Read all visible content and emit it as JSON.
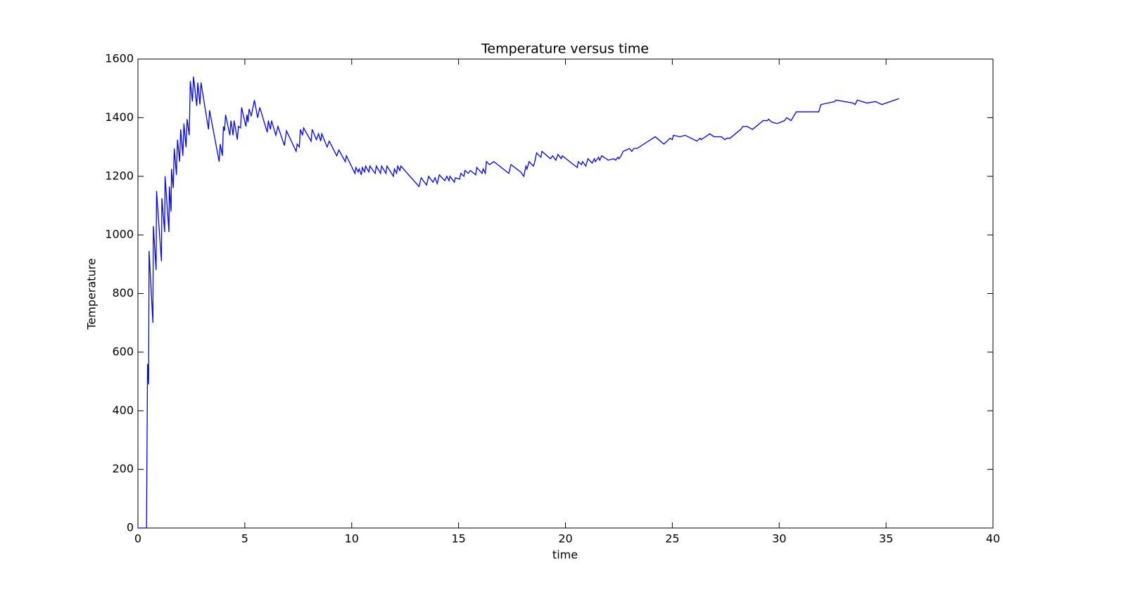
{
  "chart_data": {
    "type": "line",
    "title": "Temperature versus time",
    "x_label": "time",
    "y_label": "Temperature",
    "x": [
      0,
      0.4,
      0.45,
      0.5,
      0.52,
      0.7,
      0.72,
      0.85,
      0.87,
      1.1,
      1.12,
      1.25,
      1.27,
      1.45,
      1.47,
      1.55,
      1.57,
      1.65,
      1.7,
      1.8,
      1.85,
      1.95,
      2.0,
      2.1,
      2.15,
      2.25,
      2.3,
      2.4,
      2.45,
      2.55,
      2.6,
      2.75,
      2.8,
      2.9,
      2.95,
      3.3,
      3.35,
      3.8,
      3.85,
      3.95,
      4.0,
      4.05,
      4.1,
      4.3,
      4.35,
      4.45,
      4.5,
      4.65,
      4.7,
      4.8,
      4.85,
      5.05,
      5.1,
      5.15,
      5.2,
      5.3,
      5.45,
      5.6,
      5.7,
      6.05,
      6.1,
      6.2,
      6.25,
      6.45,
      6.55,
      6.85,
      6.95,
      7.4,
      7.45,
      7.55,
      7.6,
      7.7,
      7.75,
      8.1,
      8.15,
      8.35,
      8.45,
      8.55,
      8.6,
      8.85,
      8.95,
      9.3,
      9.4,
      9.7,
      9.75,
      10.15,
      10.2,
      10.3,
      10.35,
      10.45,
      10.5,
      10.6,
      10.65,
      10.8,
      10.85,
      11.1,
      11.15,
      11.35,
      11.4,
      11.6,
      11.65,
      11.95,
      12.0,
      12.1,
      12.15,
      12.25,
      12.3,
      13.15,
      13.25,
      13.5,
      13.6,
      13.8,
      13.9,
      14.0,
      14.1,
      14.35,
      14.45,
      14.55,
      14.6,
      14.8,
      14.85,
      15.05,
      15.1,
      15.25,
      15.3,
      15.45,
      15.55,
      15.8,
      15.85,
      16.1,
      16.15,
      16.25,
      16.3,
      16.45,
      16.65,
      17.35,
      17.45,
      17.9,
      18.05,
      18.15,
      18.2,
      18.3,
      18.5,
      18.55,
      18.65,
      18.85,
      18.9,
      19.3,
      19.4,
      19.55,
      19.65,
      19.8,
      19.85,
      20.55,
      20.6,
      20.75,
      20.8,
      20.95,
      21.05,
      21.25,
      21.35,
      21.4,
      21.55,
      21.6,
      21.7,
      22.0,
      22.25,
      22.35,
      22.45,
      22.5,
      22.6,
      22.7,
      23.0,
      23.1,
      23.2,
      23.35,
      24.2,
      24.6,
      24.9,
      25.0,
      25.05,
      25.35,
      25.6,
      26.15,
      26.3,
      26.35,
      26.75,
      26.95,
      27.3,
      27.45,
      27.55,
      27.7,
      28.2,
      28.3,
      28.5,
      28.75,
      29.25,
      29.45,
      29.5,
      29.65,
      29.9,
      30.25,
      30.35,
      30.55,
      30.8,
      31.85,
      31.95,
      32.6,
      32.65,
      33.45,
      33.55,
      33.65,
      34.1,
      34.5,
      34.8,
      35.6
    ],
    "series": [
      {
        "color": "#0000ff",
        "values": [
          0,
          0,
          560,
          490,
          945,
          700,
          1030,
          880,
          1150,
          910,
          1125,
          1010,
          1200,
          1010,
          1165,
          1080,
          1225,
          1160,
          1295,
          1205,
          1325,
          1250,
          1360,
          1270,
          1380,
          1300,
          1395,
          1340,
          1525,
          1455,
          1540,
          1440,
          1520,
          1445,
          1520,
          1360,
          1425,
          1250,
          1310,
          1270,
          1370,
          1355,
          1410,
          1340,
          1390,
          1340,
          1390,
          1325,
          1370,
          1365,
          1435,
          1370,
          1410,
          1385,
          1430,
          1405,
          1460,
          1400,
          1435,
          1350,
          1390,
          1360,
          1390,
          1340,
          1370,
          1305,
          1355,
          1285,
          1310,
          1300,
          1360,
          1340,
          1365,
          1320,
          1360,
          1325,
          1345,
          1320,
          1345,
          1300,
          1320,
          1270,
          1290,
          1250,
          1270,
          1210,
          1230,
          1215,
          1225,
          1205,
          1230,
          1215,
          1235,
          1215,
          1235,
          1210,
          1235,
          1210,
          1235,
          1210,
          1235,
          1200,
          1225,
          1210,
          1235,
          1220,
          1235,
          1165,
          1195,
          1170,
          1200,
          1180,
          1195,
          1175,
          1205,
          1185,
          1200,
          1185,
          1200,
          1180,
          1195,
          1190,
          1210,
          1200,
          1220,
          1210,
          1220,
          1205,
          1230,
          1210,
          1225,
          1210,
          1250,
          1240,
          1250,
          1210,
          1240,
          1215,
          1200,
          1235,
          1225,
          1250,
          1235,
          1245,
          1280,
          1265,
          1285,
          1260,
          1270,
          1255,
          1275,
          1260,
          1270,
          1230,
          1250,
          1240,
          1250,
          1235,
          1260,
          1245,
          1260,
          1250,
          1265,
          1255,
          1270,
          1255,
          1260,
          1255,
          1265,
          1260,
          1270,
          1285,
          1295,
          1285,
          1295,
          1295,
          1335,
          1310,
          1330,
          1325,
          1340,
          1335,
          1340,
          1320,
          1330,
          1325,
          1345,
          1335,
          1335,
          1325,
          1330,
          1330,
          1360,
          1370,
          1370,
          1360,
          1390,
          1390,
          1395,
          1385,
          1380,
          1390,
          1400,
          1390,
          1420,
          1420,
          1445,
          1455,
          1460,
          1450,
          1445,
          1460,
          1450,
          1455,
          1445,
          1465
        ]
      }
    ],
    "xlim": [
      0,
      40
    ],
    "xticks": [
      0,
      5,
      10,
      15,
      20,
      25,
      30,
      35,
      40
    ],
    "ylim": [
      0,
      1600
    ],
    "yticks": [
      0,
      200,
      400,
      600,
      800,
      1000,
      1200,
      1400,
      1600
    ],
    "grid": false
  }
}
